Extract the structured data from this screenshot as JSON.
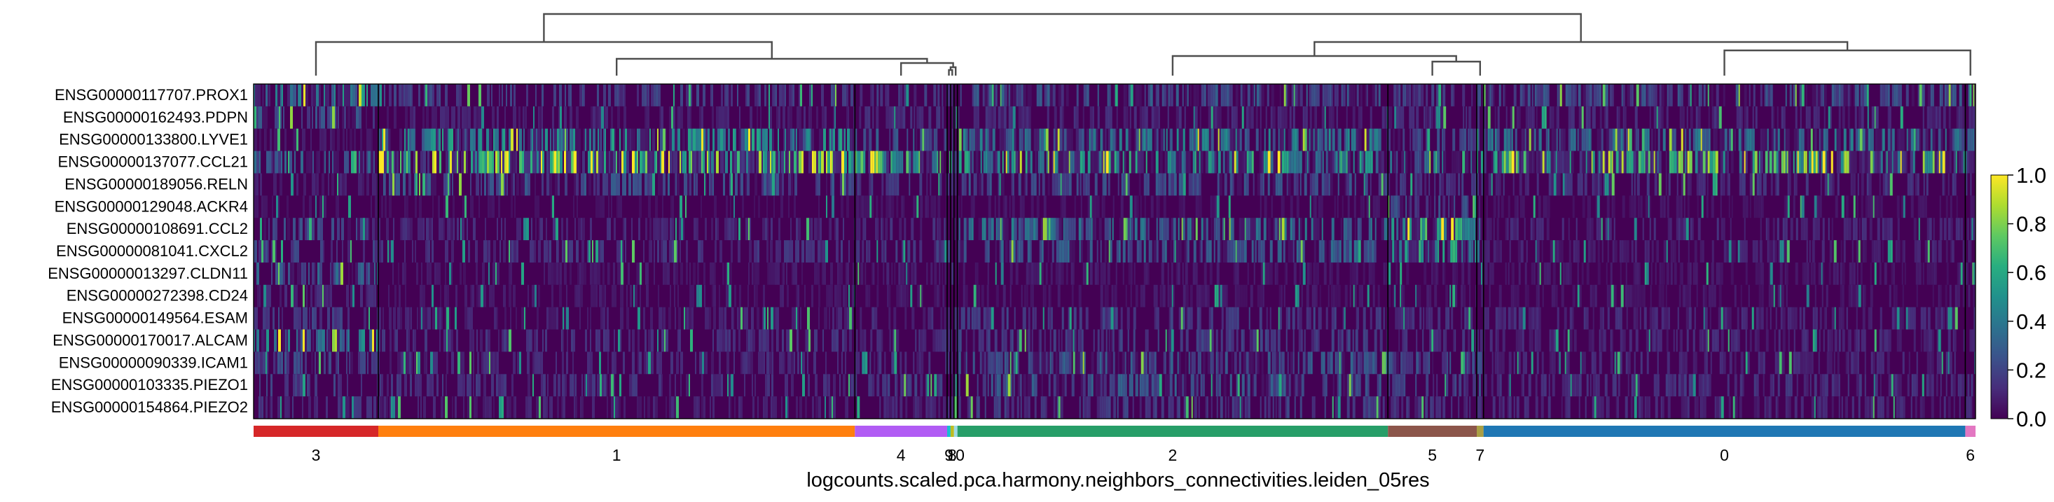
{
  "chart_data": {
    "type": "heatmap",
    "title": "",
    "xlabel": "logcounts.scaled.pca.harmony.neighbors_connectivities.leiden_05res",
    "ylabel": "",
    "genes": [
      "ENSG00000117707.PROX1",
      "ENSG00000162493.PDPN",
      "ENSG00000133800.LYVE1",
      "ENSG00000137077.CCL21",
      "ENSG00000189056.RELN",
      "ENSG00000129048.ACKR4",
      "ENSG00000108691.CCL2",
      "ENSG00000081041.CXCL2",
      "ENSG00000013297.CLDN11",
      "ENSG00000272398.CD24",
      "ENSG00000149564.ESAM",
      "ENSG00000170017.ALCAM",
      "ENSG00000090339.ICAM1",
      "ENSG00000103335.PIEZO1",
      "ENSG00000154864.PIEZO2"
    ],
    "cluster_order": [
      "3",
      "1",
      "4",
      "9",
      "8",
      "10",
      "2",
      "5",
      "7",
      "0",
      "6"
    ],
    "cluster_labels_shown": [
      "3",
      "1",
      "4",
      "9",
      "8",
      "10",
      "2",
      "5",
      "7",
      "0",
      "6"
    ],
    "cluster_cell_fraction": [
      0.073,
      0.279,
      0.054,
      0.002,
      0.002,
      0.002,
      0.252,
      0.052,
      0.004,
      0.282,
      0.006
    ],
    "cluster_colors": [
      "#d62728",
      "#ff7f0e",
      "#b15cf4",
      "#17becf",
      "#bcbd22",
      "#9edae5",
      "#279e68",
      "#8c564b",
      "#aa9f45",
      "#1f77b4",
      "#e377c2"
    ],
    "mean_expression": [
      [
        0.4,
        0.16,
        0.14,
        0.1,
        0.1,
        0.1,
        0.22,
        0.16,
        0.2,
        0.2,
        0.2
      ],
      [
        0.2,
        0.08,
        0.12,
        0.1,
        0.1,
        0.1,
        0.1,
        0.1,
        0.1,
        0.1,
        0.1
      ],
      [
        0.06,
        0.4,
        0.22,
        0.1,
        0.1,
        0.1,
        0.35,
        0.2,
        0.25,
        0.3,
        0.3
      ],
      [
        0.25,
        0.68,
        0.55,
        0.2,
        0.2,
        0.2,
        0.45,
        0.3,
        0.4,
        0.62,
        0.6
      ],
      [
        0.08,
        0.2,
        0.14,
        0.1,
        0.1,
        0.1,
        0.2,
        0.14,
        0.18,
        0.12,
        0.12
      ],
      [
        0.05,
        0.04,
        0.05,
        0.05,
        0.05,
        0.05,
        0.05,
        0.2,
        0.08,
        0.05,
        0.05
      ],
      [
        0.18,
        0.1,
        0.12,
        0.15,
        0.15,
        0.15,
        0.3,
        0.5,
        0.3,
        0.1,
        0.12
      ],
      [
        0.16,
        0.12,
        0.14,
        0.15,
        0.15,
        0.15,
        0.25,
        0.45,
        0.28,
        0.08,
        0.1
      ],
      [
        0.25,
        0.06,
        0.08,
        0.1,
        0.1,
        0.1,
        0.06,
        0.06,
        0.06,
        0.06,
        0.06
      ],
      [
        0.1,
        0.06,
        0.06,
        0.1,
        0.1,
        0.1,
        0.06,
        0.06,
        0.06,
        0.06,
        0.06
      ],
      [
        0.15,
        0.08,
        0.1,
        0.1,
        0.1,
        0.1,
        0.15,
        0.12,
        0.12,
        0.1,
        0.1
      ],
      [
        0.35,
        0.12,
        0.12,
        0.1,
        0.1,
        0.1,
        0.15,
        0.12,
        0.12,
        0.1,
        0.1
      ],
      [
        0.18,
        0.1,
        0.12,
        0.1,
        0.1,
        0.1,
        0.22,
        0.2,
        0.18,
        0.1,
        0.1
      ],
      [
        0.15,
        0.12,
        0.14,
        0.1,
        0.1,
        0.1,
        0.22,
        0.16,
        0.18,
        0.12,
        0.12
      ],
      [
        0.12,
        0.08,
        0.1,
        0.1,
        0.1,
        0.1,
        0.15,
        0.12,
        0.12,
        0.1,
        0.1
      ]
    ],
    "colorbar": {
      "colormap": "viridis",
      "vmin": 0.0,
      "vmax": 1.0,
      "ticks": [
        "0.0",
        "0.2",
        "0.4",
        "0.6",
        "0.8",
        "1.0"
      ]
    },
    "dendrogram": "present",
    "grid": false,
    "legend": "none"
  }
}
